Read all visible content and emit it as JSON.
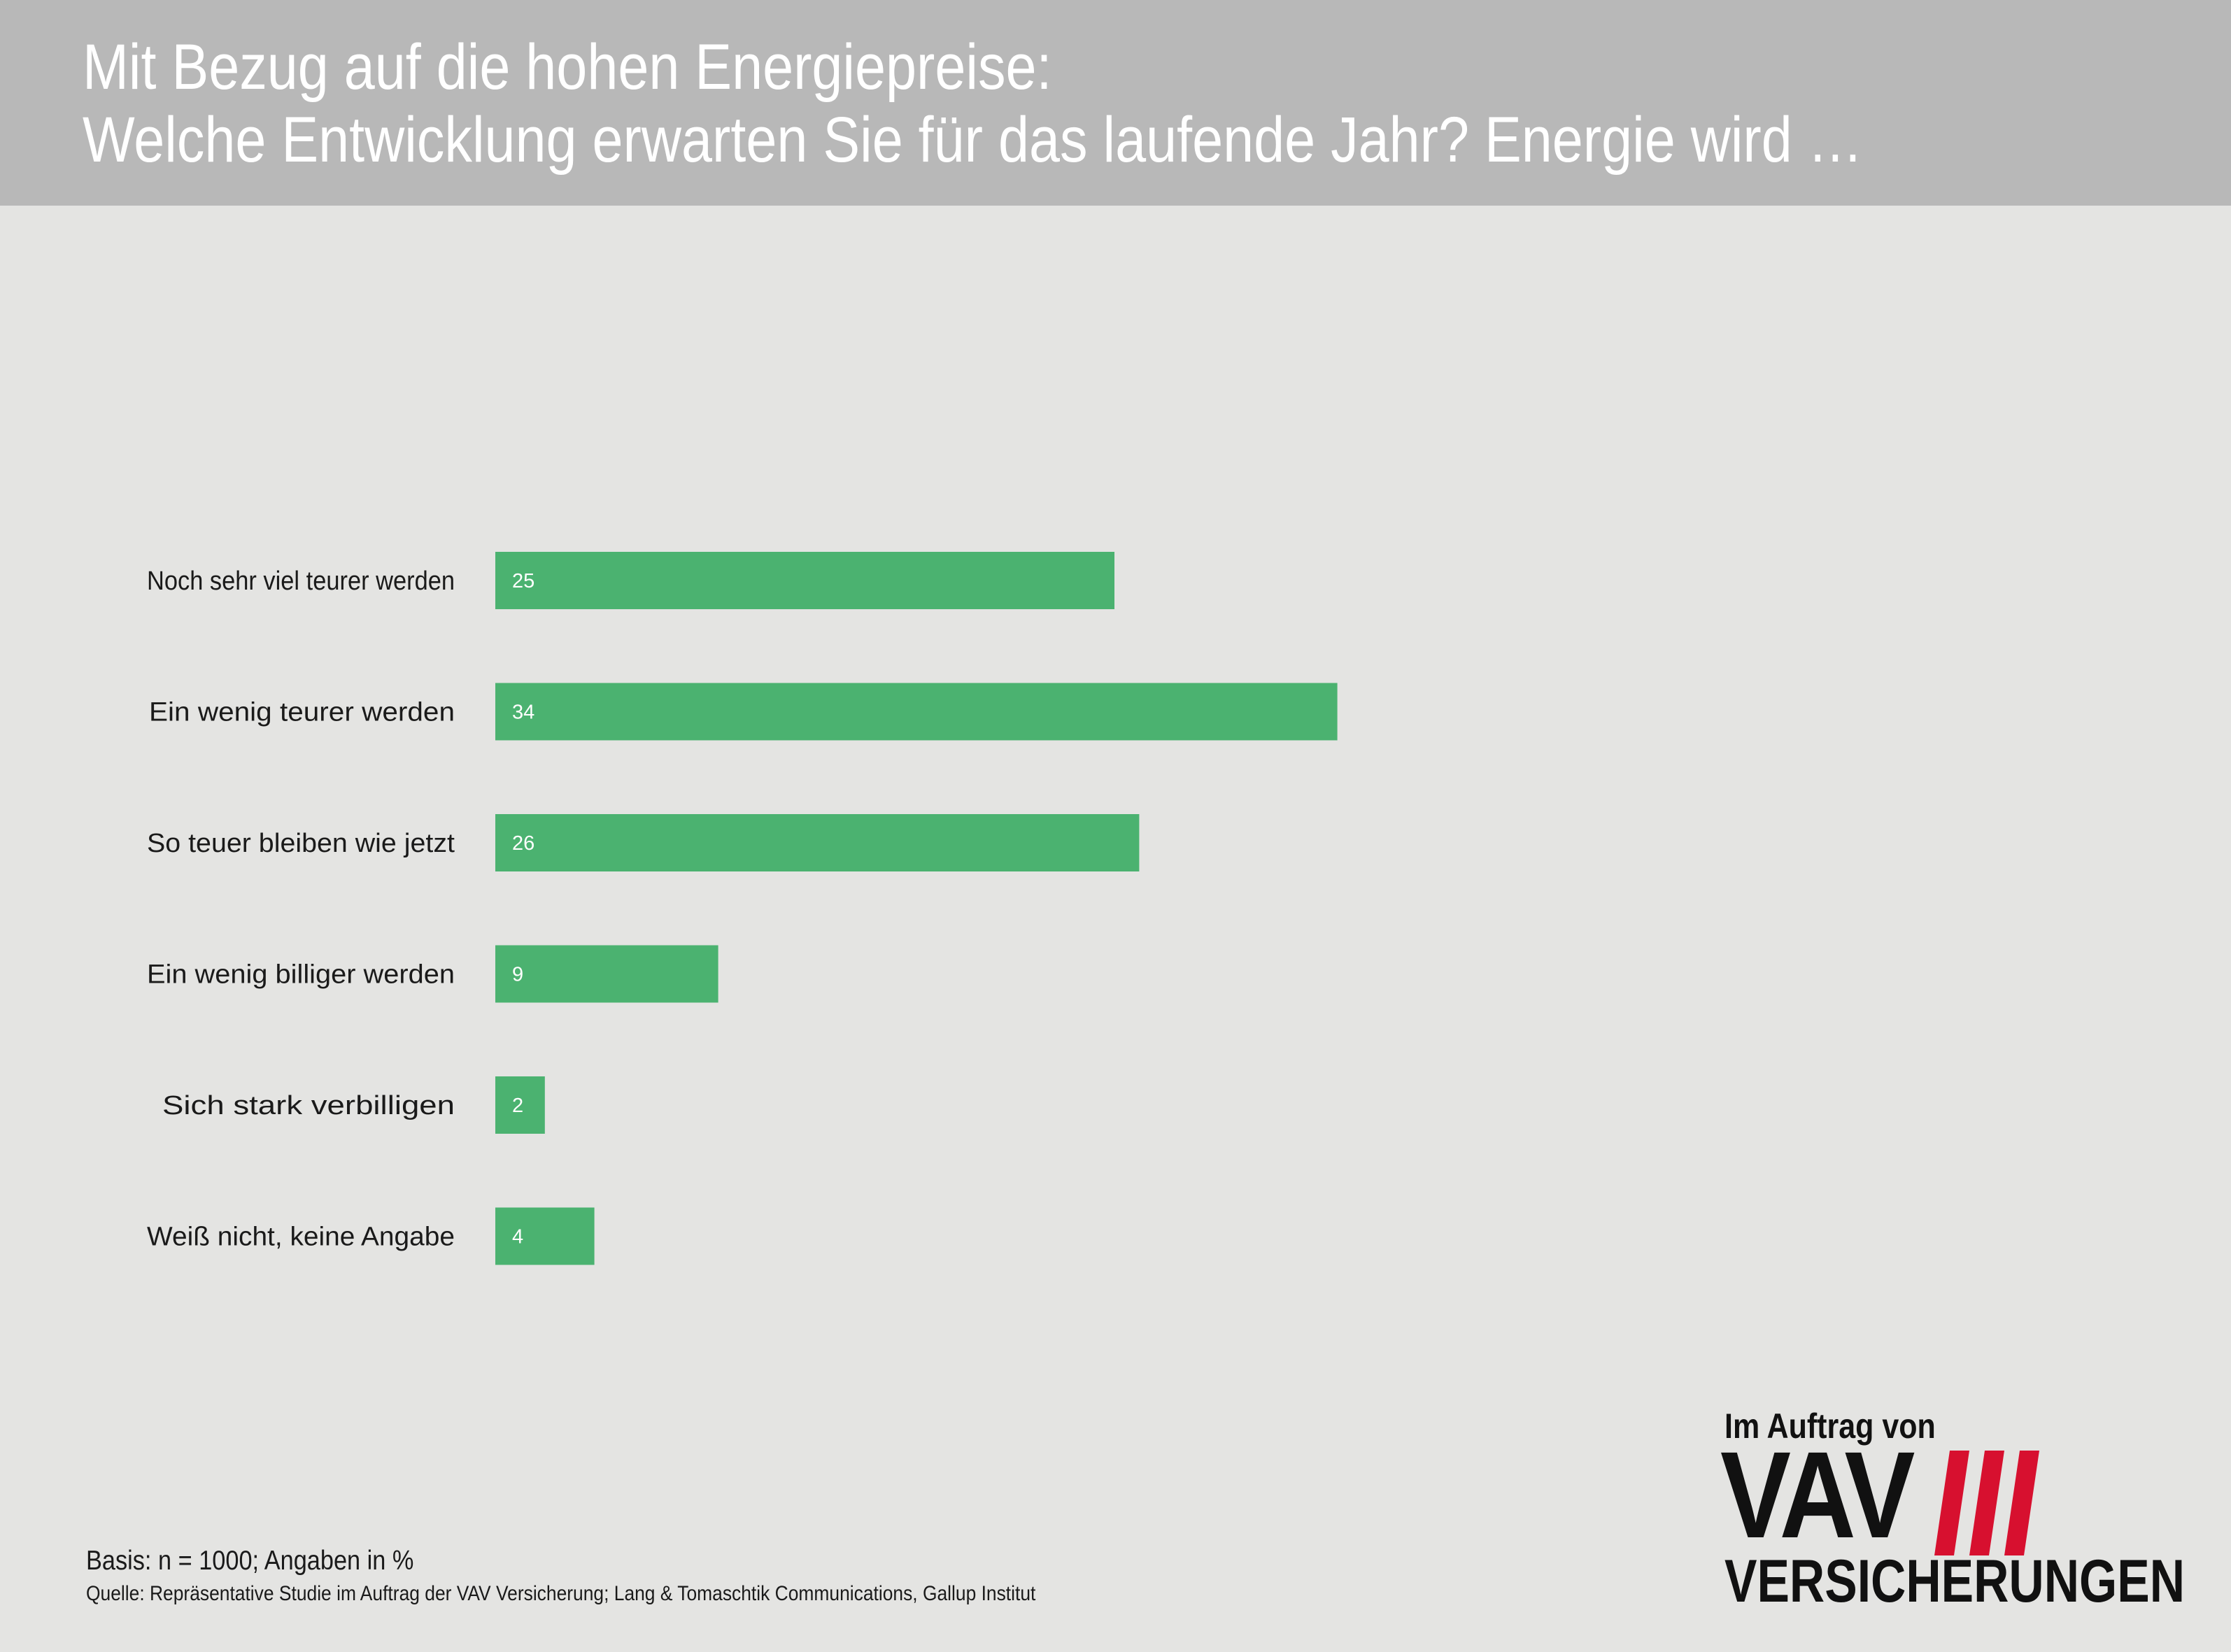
{
  "header": {
    "title_line1": "Mit Bezug auf die hohen Energiepreise:",
    "title_line2": "Welche Entwicklung erwarten Sie für das laufende Jahr? Energie wird …"
  },
  "chart_data": {
    "type": "bar",
    "orientation": "horizontal",
    "categories": [
      "Noch sehr viel teurer werden",
      "Ein wenig teurer werden",
      "So teuer bleiben wie jetzt",
      "Ein wenig billiger werden",
      "Sich stark verbilligen",
      "Weiß nicht, keine Angabe"
    ],
    "values": [
      25,
      34,
      26,
      9,
      2,
      4
    ],
    "value_unit": "%",
    "data_labels": true,
    "bar_color": "#4bb270",
    "grid": false,
    "legend": "none"
  },
  "footer": {
    "basis": "Basis: n = 1000; Angaben in %",
    "source": "Quelle: Repräsentative Studie im Auftrag der VAV Versicherung; Lang & Tomaschtik Communications, Gallup Institut"
  },
  "logo": {
    "top": "Im Auftrag von",
    "brand": "VAV",
    "bottom": "VERSICHERUNGEN",
    "accent_color": "#d7102f"
  }
}
